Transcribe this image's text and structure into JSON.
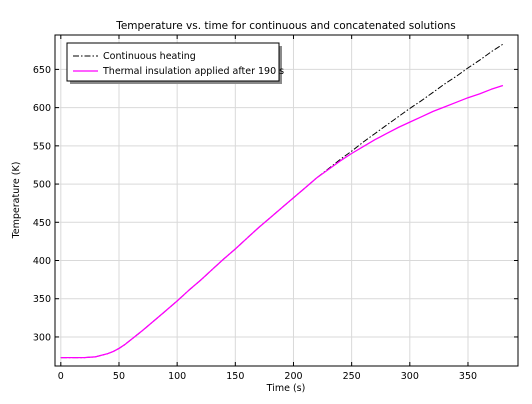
{
  "chart_data": {
    "type": "line",
    "title": "Temperature vs. time for continuous and concatenated solutions",
    "xlabel": "Time (s)",
    "ylabel": "Temperature (K)",
    "xlim": [
      -5,
      393
    ],
    "ylim": [
      262,
      695
    ],
    "x_ticks": [
      0,
      50,
      100,
      150,
      200,
      250,
      300,
      350
    ],
    "y_ticks": [
      300,
      350,
      400,
      450,
      500,
      550,
      600,
      650
    ],
    "grid": true,
    "legend_position": "top-left",
    "series": [
      {
        "name": "Continuous heating",
        "color": "#000000",
        "line_style": "dash-dot",
        "x": [
          0,
          10,
          20,
          30,
          35,
          40,
          45,
          50,
          55,
          60,
          70,
          80,
          90,
          100,
          110,
          120,
          130,
          140,
          150,
          160,
          170,
          180,
          190,
          200,
          210,
          220,
          230,
          240,
          250,
          260,
          270,
          280,
          290,
          300,
          310,
          320,
          330,
          340,
          350,
          360,
          370,
          380
        ],
        "y": [
          273,
          273,
          273,
          274,
          276,
          278,
          281,
          285,
          290,
          296,
          308,
          321,
          334,
          347,
          361,
          374,
          388,
          402,
          415,
          429,
          443,
          456,
          469,
          482,
          495,
          508,
          520,
          532,
          543,
          555,
          566,
          577,
          588,
          599,
          609,
          620,
          631,
          641,
          652,
          662,
          673,
          683
        ]
      },
      {
        "name": "Thermal insulation applied after 190 s",
        "color": "#ff00ff",
        "line_style": "solid",
        "x": [
          0,
          10,
          20,
          30,
          35,
          40,
          45,
          50,
          55,
          60,
          70,
          80,
          90,
          100,
          110,
          120,
          130,
          140,
          150,
          160,
          170,
          180,
          190,
          200,
          210,
          220,
          230,
          240,
          250,
          260,
          270,
          280,
          290,
          300,
          310,
          320,
          330,
          340,
          350,
          360,
          370,
          380
        ],
        "y": [
          273,
          273,
          273,
          274,
          276,
          278,
          281,
          285,
          290,
          296,
          308,
          321,
          334,
          347,
          361,
          374,
          388,
          402,
          415,
          429,
          443,
          456,
          469,
          482,
          495,
          508,
          519,
          530,
          540,
          549,
          558,
          566,
          574,
          581,
          588,
          595,
          601,
          607,
          613,
          618,
          624,
          629
        ]
      }
    ]
  }
}
